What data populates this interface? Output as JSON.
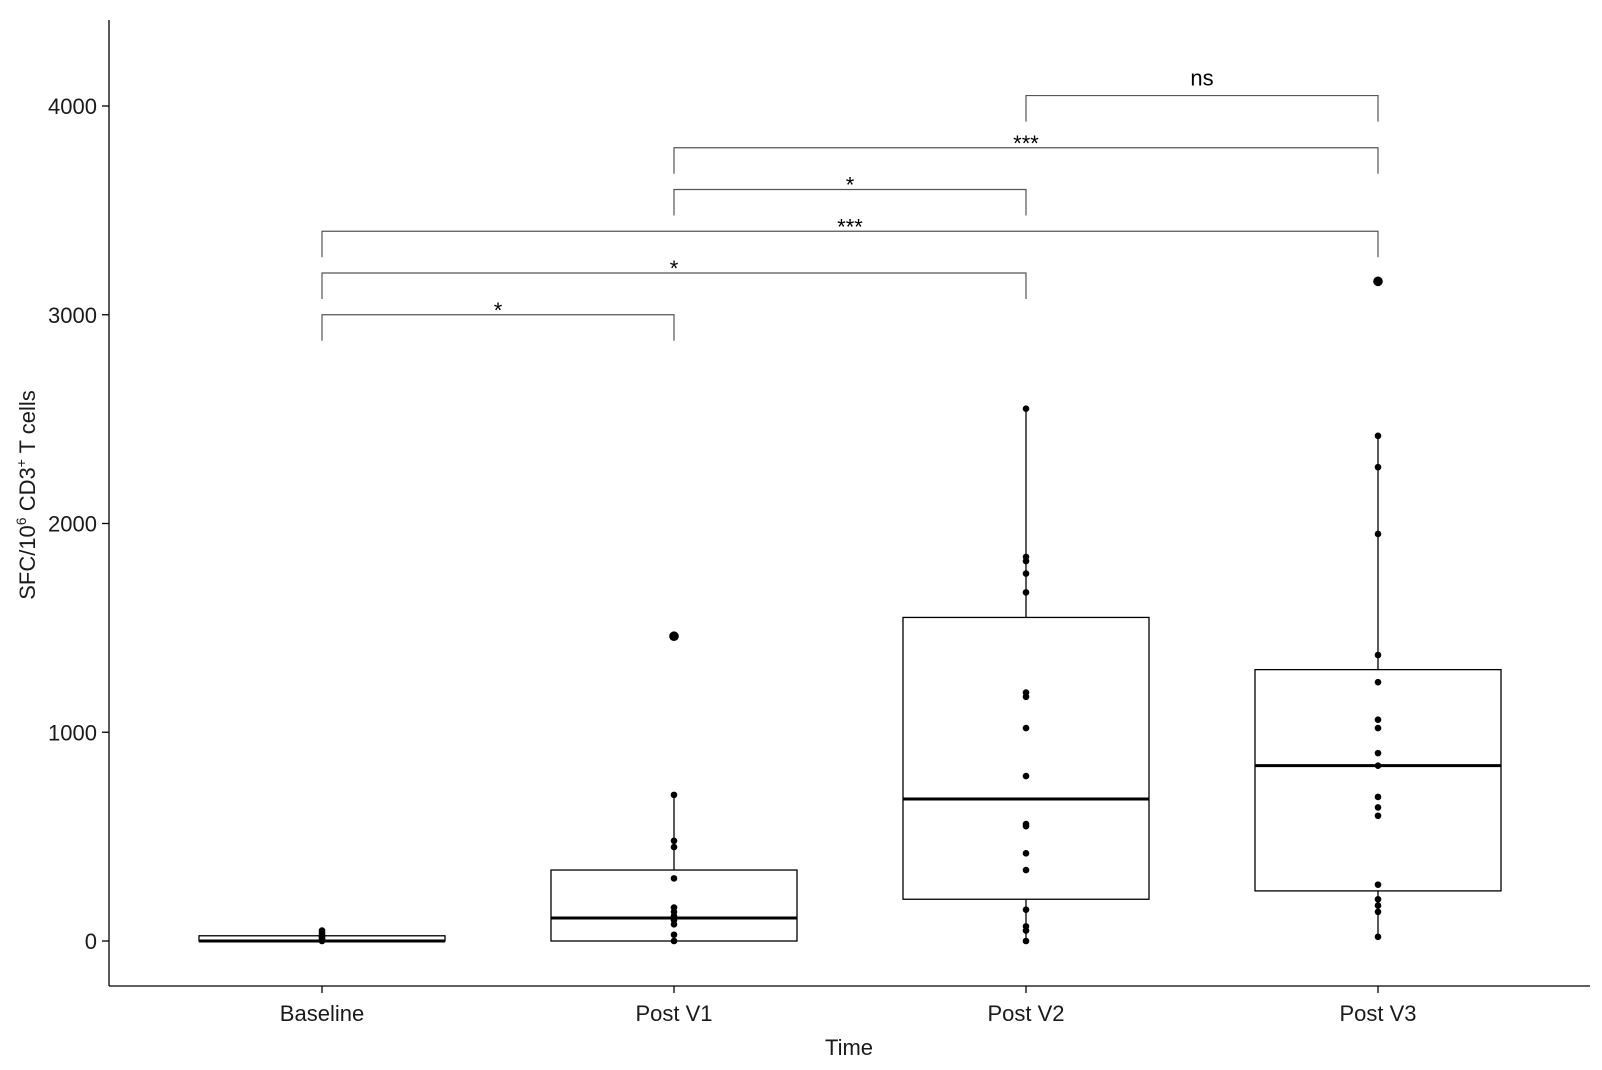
{
  "chart_data": {
    "type": "box",
    "xlabel": "Time",
    "ylabel_parts": {
      "pre": "SFC/10",
      "sup1": "6",
      "mid": " CD3",
      "sup2": "+",
      "post": " T cells"
    },
    "categories": [
      "Baseline",
      "Post V1",
      "Post V2",
      "Post V3"
    ],
    "ylim": [
      -210,
      4400
    ],
    "yticks": [
      0,
      1000,
      2000,
      3000,
      4000
    ],
    "grid": false,
    "boxes": [
      {
        "category": "Baseline",
        "q1": 0,
        "median": 0,
        "q3": 25,
        "whisker_low": 0,
        "whisker_high": 50,
        "outliers": []
      },
      {
        "category": "Post V1",
        "q1": 0,
        "median": 110,
        "q3": 340,
        "whisker_low": 0,
        "whisker_high": 700,
        "outliers": [
          1460
        ]
      },
      {
        "category": "Post V2",
        "q1": 200,
        "median": 680,
        "q3": 1550,
        "whisker_low": 0,
        "whisker_high": 2550,
        "outliers": []
      },
      {
        "category": "Post V3",
        "q1": 240,
        "median": 840,
        "q3": 1300,
        "whisker_low": 20,
        "whisker_high": 2420,
        "outliers": [
          3160
        ]
      }
    ],
    "points": [
      {
        "category": "Baseline",
        "values": [
          0,
          5,
          10,
          15,
          20,
          25,
          30,
          40,
          50
        ]
      },
      {
        "category": "Post V1",
        "values": [
          0,
          30,
          80,
          100,
          120,
          140,
          160,
          300,
          450,
          480,
          700,
          1460
        ]
      },
      {
        "category": "Post V2",
        "values": [
          0,
          50,
          70,
          150,
          340,
          420,
          550,
          560,
          790,
          1020,
          1170,
          1190,
          1670,
          1760,
          1820,
          1840,
          2550
        ]
      },
      {
        "category": "Post V3",
        "values": [
          20,
          140,
          170,
          200,
          270,
          600,
          640,
          690,
          840,
          900,
          1020,
          1060,
          1240,
          1370,
          1950,
          2270,
          2420,
          3160
        ]
      }
    ],
    "comparisons": [
      {
        "from": "Baseline",
        "to": "Post V1",
        "y": 3000,
        "label": "*"
      },
      {
        "from": "Baseline",
        "to": "Post V2",
        "y": 3200,
        "label": "*"
      },
      {
        "from": "Baseline",
        "to": "Post V3",
        "y": 3400,
        "label": "***"
      },
      {
        "from": "Post V1",
        "to": "Post V2",
        "y": 3600,
        "label": "*"
      },
      {
        "from": "Post V1",
        "to": "Post V3",
        "y": 3800,
        "label": "***"
      },
      {
        "from": "Post V2",
        "to": "Post V3",
        "y": 4050,
        "label": "ns"
      }
    ]
  }
}
